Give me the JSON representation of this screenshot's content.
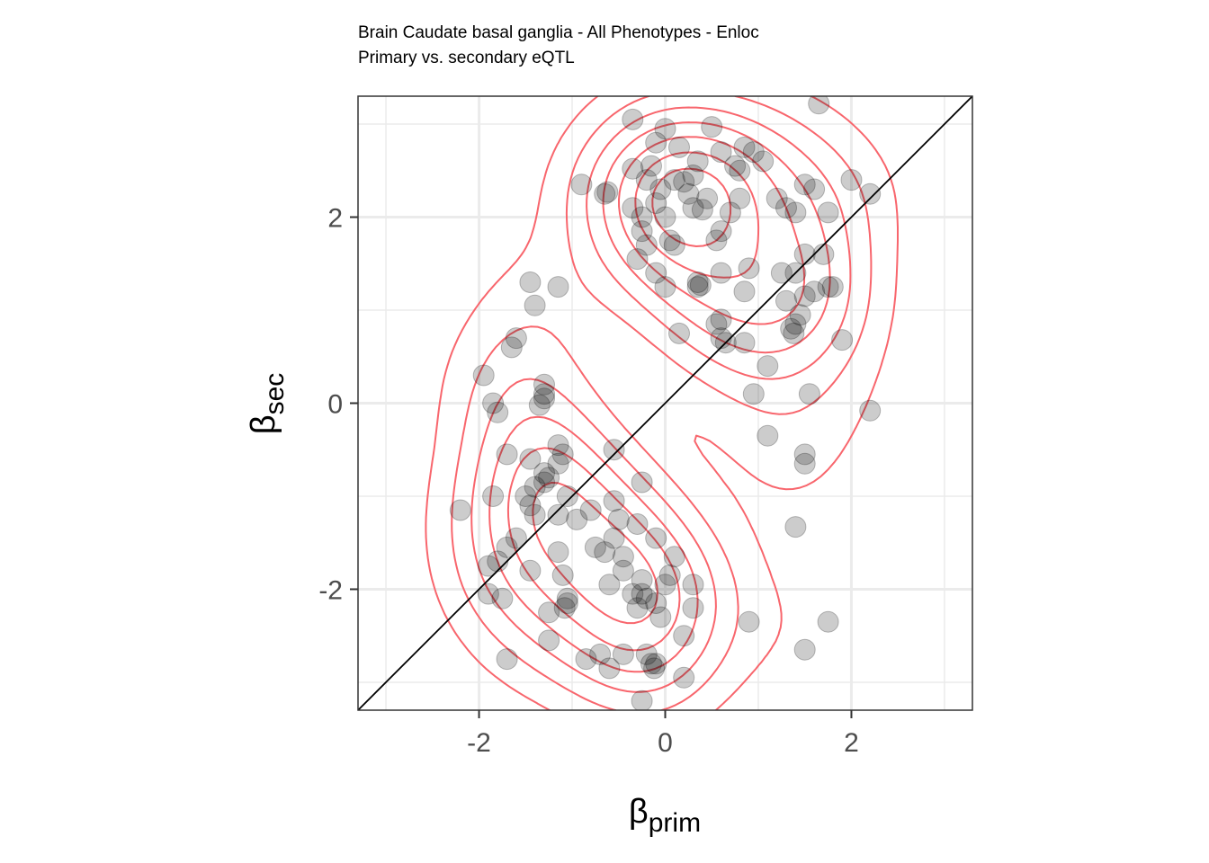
{
  "chart_data": {
    "type": "scatter",
    "title": "Brain Caudate basal ganglia - All Phenotypes - Enloc",
    "subtitle": "Primary vs. secondary eQTL",
    "xlabel": {
      "greek": "β",
      "sub": "prim"
    },
    "ylabel": {
      "greek": "β",
      "sub": "sec"
    },
    "xlim": [
      -3.3,
      3.3
    ],
    "ylim": [
      -3.3,
      3.3
    ],
    "xticks": [
      -2,
      0,
      2
    ],
    "yticks": [
      -2,
      0,
      2
    ],
    "xtick_labels": [
      "-2",
      "0",
      "2"
    ],
    "ytick_labels": [
      "-2",
      "0",
      "2"
    ],
    "grid": true,
    "reference_line": {
      "type": "identity",
      "color": "#000000"
    },
    "point_color": "#000000",
    "point_opacity": 0.2,
    "density_color": "#f8666d",
    "points": [
      [
        -0.35,
        3.05
      ],
      [
        0.0,
        2.95
      ],
      [
        0.5,
        2.97
      ],
      [
        1.65,
        3.22
      ],
      [
        -0.1,
        2.8
      ],
      [
        0.15,
        2.75
      ],
      [
        0.6,
        2.7
      ],
      [
        0.85,
        2.75
      ],
      [
        0.95,
        2.7
      ],
      [
        1.05,
        2.6
      ],
      [
        -0.15,
        2.55
      ],
      [
        0.35,
        2.6
      ],
      [
        0.75,
        2.55
      ],
      [
        -0.35,
        2.52
      ],
      [
        0.3,
        2.45
      ],
      [
        0.8,
        2.5
      ],
      [
        -0.9,
        2.35
      ],
      [
        -0.65,
        2.25
      ],
      [
        -0.62,
        2.27
      ],
      [
        -0.2,
        2.4
      ],
      [
        0.1,
        2.4
      ],
      [
        0.2,
        2.38
      ],
      [
        0.45,
        2.2
      ],
      [
        1.5,
        2.35
      ],
      [
        1.6,
        2.3
      ],
      [
        -0.05,
        2.3
      ],
      [
        0.25,
        2.25
      ],
      [
        0.8,
        2.2
      ],
      [
        1.2,
        2.2
      ],
      [
        1.3,
        2.1
      ],
      [
        1.4,
        2.05
      ],
      [
        2.0,
        2.4
      ],
      [
        2.2,
        2.25
      ],
      [
        -0.35,
        2.1
      ],
      [
        -0.1,
        2.15
      ],
      [
        0.3,
        2.1
      ],
      [
        0.4,
        2.08
      ],
      [
        0.7,
        2.05
      ],
      [
        1.75,
        2.05
      ],
      [
        0.0,
        2.0
      ],
      [
        -0.25,
        2.0
      ],
      [
        -0.25,
        1.85
      ],
      [
        0.6,
        1.85
      ],
      [
        0.55,
        1.75
      ],
      [
        -0.2,
        1.7
      ],
      [
        0.05,
        1.75
      ],
      [
        0.1,
        1.7
      ],
      [
        1.5,
        1.6
      ],
      [
        1.7,
        1.6
      ],
      [
        -0.3,
        1.55
      ],
      [
        -0.1,
        1.4
      ],
      [
        0.6,
        1.4
      ],
      [
        0.9,
        1.45
      ],
      [
        1.25,
        1.4
      ],
      [
        1.4,
        1.4
      ],
      [
        0.35,
        1.3
      ],
      [
        0.38,
        1.27
      ],
      [
        0.35,
        1.25
      ],
      [
        0.0,
        1.25
      ],
      [
        1.8,
        1.25
      ],
      [
        1.75,
        1.25
      ],
      [
        1.6,
        1.2
      ],
      [
        0.85,
        1.2
      ],
      [
        1.5,
        1.15
      ],
      [
        1.3,
        1.1
      ],
      [
        1.45,
        0.95
      ],
      [
        0.6,
        0.9
      ],
      [
        0.55,
        0.85
      ],
      [
        1.4,
        0.85
      ],
      [
        1.35,
        0.8
      ],
      [
        1.38,
        0.75
      ],
      [
        0.15,
        0.75
      ],
      [
        0.6,
        0.7
      ],
      [
        0.65,
        0.65
      ],
      [
        0.85,
        0.65
      ],
      [
        1.9,
        0.68
      ],
      [
        1.1,
        0.4
      ],
      [
        0.95,
        0.1
      ],
      [
        1.55,
        0.1
      ],
      [
        2.2,
        -0.08
      ],
      [
        1.1,
        -0.35
      ],
      [
        1.5,
        -0.55
      ],
      [
        1.5,
        -0.65
      ],
      [
        -0.55,
        -0.5
      ],
      [
        1.4,
        -1.33
      ],
      [
        -1.45,
        1.3
      ],
      [
        -1.15,
        1.25
      ],
      [
        -1.4,
        1.05
      ],
      [
        -1.6,
        0.7
      ],
      [
        -1.65,
        0.6
      ],
      [
        -1.95,
        0.3
      ],
      [
        -1.85,
        0.0
      ],
      [
        -1.8,
        -0.1
      ],
      [
        -1.3,
        0.2
      ],
      [
        -1.3,
        0.1
      ],
      [
        -1.3,
        0.05
      ],
      [
        -1.35,
        -0.02
      ],
      [
        -1.7,
        -0.55
      ],
      [
        -1.15,
        -0.45
      ],
      [
        -1.45,
        -0.6
      ],
      [
        -1.1,
        -0.55
      ],
      [
        -1.15,
        -0.65
      ],
      [
        -1.3,
        -0.75
      ],
      [
        -1.25,
        -0.8
      ],
      [
        -1.3,
        -0.85
      ],
      [
        -1.4,
        -0.9
      ],
      [
        -1.5,
        -1.0
      ],
      [
        -1.85,
        -1.0
      ],
      [
        -2.2,
        -1.15
      ],
      [
        -1.45,
        -1.1
      ],
      [
        -1.4,
        -1.2
      ],
      [
        -1.05,
        -1.0
      ],
      [
        -0.55,
        -1.05
      ],
      [
        -0.25,
        -0.85
      ],
      [
        -1.15,
        -1.2
      ],
      [
        -0.8,
        -1.15
      ],
      [
        -0.95,
        -1.25
      ],
      [
        -0.5,
        -1.25
      ],
      [
        -0.3,
        -1.3
      ],
      [
        -1.6,
        -1.45
      ],
      [
        -1.7,
        -1.55
      ],
      [
        -0.55,
        -1.45
      ],
      [
        -0.1,
        -1.45
      ],
      [
        -1.15,
        -1.6
      ],
      [
        -0.75,
        -1.55
      ],
      [
        -0.65,
        -1.6
      ],
      [
        -0.45,
        -1.65
      ],
      [
        0.1,
        -1.65
      ],
      [
        -1.9,
        -1.75
      ],
      [
        -1.8,
        -1.7
      ],
      [
        -1.45,
        -1.8
      ],
      [
        -0.45,
        -1.8
      ],
      [
        -1.1,
        -1.85
      ],
      [
        -0.25,
        -1.9
      ],
      [
        0.05,
        -1.85
      ],
      [
        0.0,
        -1.95
      ],
      [
        0.3,
        -1.95
      ],
      [
        -1.9,
        -2.05
      ],
      [
        -1.75,
        -2.1
      ],
      [
        -0.6,
        -1.95
      ],
      [
        -0.35,
        -2.05
      ],
      [
        -0.25,
        -2.05
      ],
      [
        -0.2,
        -2.1
      ],
      [
        -0.3,
        -2.2
      ],
      [
        -0.1,
        -2.15
      ],
      [
        0.3,
        -2.2
      ],
      [
        -1.05,
        -2.1
      ],
      [
        -1.05,
        -2.15
      ],
      [
        -1.08,
        -2.2
      ],
      [
        -1.25,
        -2.25
      ],
      [
        -0.05,
        -2.3
      ],
      [
        0.2,
        -2.5
      ],
      [
        -1.25,
        -2.55
      ],
      [
        -0.7,
        -2.7
      ],
      [
        -0.45,
        -2.7
      ],
      [
        -0.2,
        -2.7
      ],
      [
        -0.85,
        -2.75
      ],
      [
        -0.6,
        -2.85
      ],
      [
        -0.15,
        -2.8
      ],
      [
        -0.12,
        -2.85
      ],
      [
        -0.1,
        -2.8
      ],
      [
        -1.7,
        -2.75
      ],
      [
        0.2,
        -2.95
      ],
      [
        -0.25,
        -3.2
      ],
      [
        0.9,
        -2.35
      ],
      [
        1.75,
        -2.35
      ],
      [
        1.5,
        -2.65
      ]
    ]
  }
}
